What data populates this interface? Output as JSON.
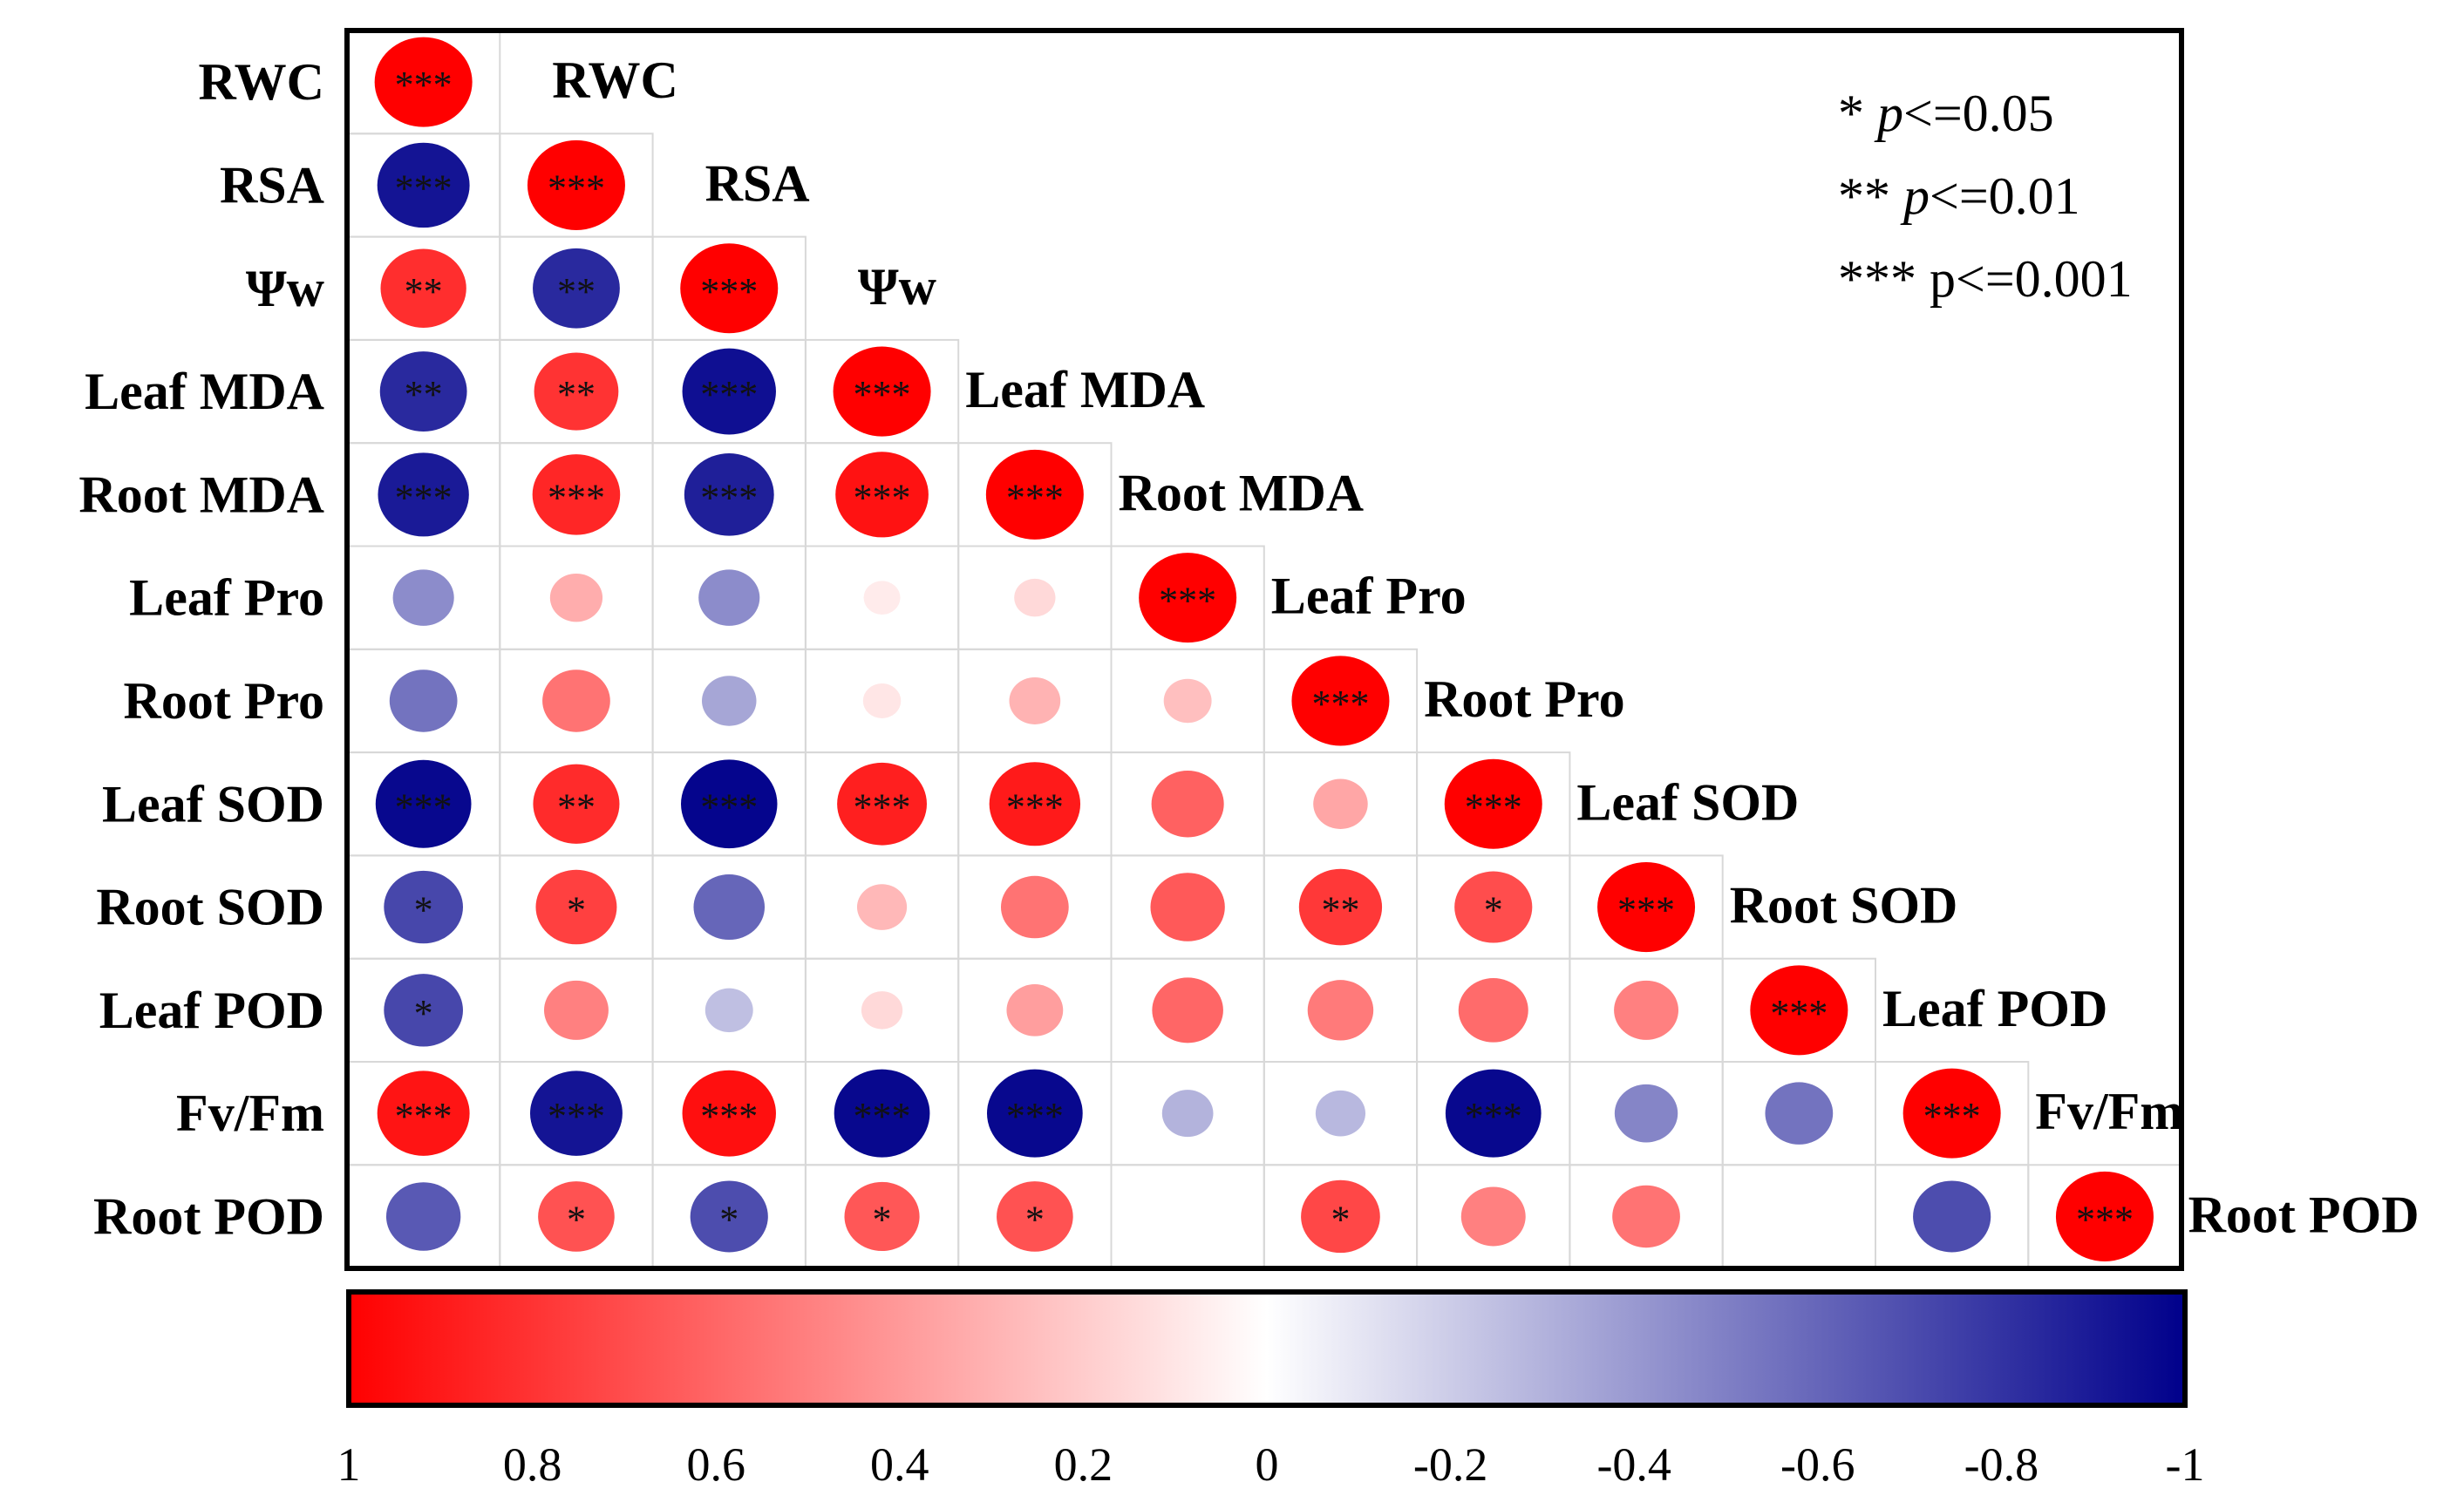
{
  "chart_data": {
    "type": "heatmap",
    "subtype": "correlation-matrix-lower-triangle",
    "variables": [
      "RWC",
      "RSA",
      "Ψw",
      "Leaf MDA",
      "Root MDA",
      "Leaf Pro",
      "Root Pro",
      "Leaf SOD",
      "Root SOD",
      "Leaf POD",
      "Fv/Fm",
      "Root POD"
    ],
    "diagonal_labels": [
      "RWC",
      "RSA",
      "Ψw",
      "Leaf MDA",
      "Root MDA",
      "Leaf Pro",
      "Root Pro",
      "Leaf SOD",
      "Root SOD",
      "Leaf POD",
      "Fv/Fm",
      "Root POD"
    ],
    "correlations": [
      [
        1.0
      ],
      [
        -0.92,
        1.0
      ],
      [
        0.82,
        -0.84,
        1.0
      ],
      [
        -0.84,
        0.8,
        -0.94,
        1.0
      ],
      [
        -0.9,
        0.85,
        -0.88,
        0.93,
        1.0
      ],
      [
        -0.45,
        0.32,
        -0.45,
        0.08,
        0.15,
        1.0
      ],
      [
        -0.55,
        0.55,
        -0.35,
        0.1,
        0.3,
        0.25,
        1.0
      ],
      [
        -0.97,
        0.83,
        -0.98,
        0.88,
        0.9,
        0.62,
        0.35,
        1.0
      ],
      [
        -0.72,
        0.75,
        -0.6,
        0.28,
        0.55,
        0.65,
        0.78,
        0.7,
        1.0
      ],
      [
        -0.72,
        0.5,
        -0.25,
        0.15,
        0.38,
        0.6,
        0.52,
        0.58,
        0.5,
        1.0
      ],
      [
        0.92,
        -0.92,
        0.94,
        -0.97,
        -0.97,
        -0.3,
        -0.28,
        -0.97,
        -0.48,
        -0.55,
        1.0
      ],
      [
        -0.65,
        0.68,
        -0.7,
        0.66,
        0.68,
        0.0,
        0.72,
        0.5,
        0.55,
        0.0,
        -0.7,
        1.0
      ]
    ],
    "significance": [
      [
        "***"
      ],
      [
        "***",
        "***"
      ],
      [
        "**",
        "**",
        "***"
      ],
      [
        "**",
        "**",
        "***",
        "***"
      ],
      [
        "***",
        "***",
        "***",
        "***",
        "***"
      ],
      [
        "",
        "",
        "",
        "",
        "",
        "***"
      ],
      [
        "",
        "",
        "",
        "",
        "",
        "",
        "***"
      ],
      [
        "***",
        "**",
        "***",
        "***",
        "***",
        "",
        "",
        "***"
      ],
      [
        "*",
        "*",
        "",
        "",
        "",
        "",
        "**",
        "*",
        "***"
      ],
      [
        "*",
        "",
        "",
        "",
        "",
        "",
        "",
        "",
        "",
        "***"
      ],
      [
        "***",
        "***",
        "***",
        "***",
        "***",
        "",
        "",
        "***",
        "",
        "",
        "***"
      ],
      [
        "",
        "*",
        "*",
        "*",
        "*",
        "",
        "*",
        "",
        "",
        "",
        "",
        "***"
      ]
    ],
    "color_scale": {
      "min": -1,
      "max": 1,
      "low_color": "#00008B",
      "mid_color": "#FFFFFF",
      "high_color": "#FF0000",
      "ticks": [
        "1",
        "0.8",
        "0.6",
        "0.4",
        "0.2",
        "0",
        "-0.2",
        "-0.4",
        "-0.6",
        "-0.8",
        "-1"
      ],
      "tick_values": [
        1,
        0.8,
        0.6,
        0.4,
        0.2,
        0,
        -0.2,
        -0.4,
        -0.6,
        -0.8,
        -1
      ]
    },
    "legend": {
      "line1_stars": "*",
      "line1_p": "p",
      "line1_rest": "<=0.05",
      "line2_stars": "**",
      "line2_p": "p",
      "line2_rest": "<=0.01",
      "line3_stars": "***",
      "line3_rest": "p<=0.001"
    }
  }
}
